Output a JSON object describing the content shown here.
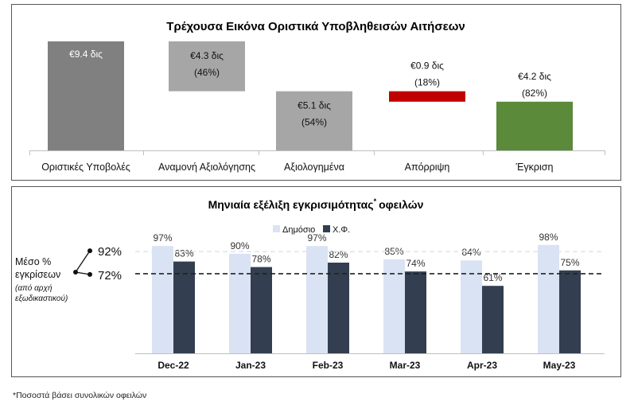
{
  "chart_data": [
    {
      "type": "waterfall",
      "title": "Τρέχουσα Εικόνα Οριστικά Υποβληθεισών Αιτήσεων",
      "categories": [
        "Οριστικές Υποβολές",
        "Αναμονή Αξιολόγησης",
        "Αξιολογημένα",
        "Απόρριψη",
        "Έγκριση"
      ],
      "values": [
        9.4,
        4.3,
        5.1,
        0.9,
        4.2
      ],
      "value_labels": [
        "€9.4 δις",
        "€4.3 δις",
        "€5.1 δις",
        "€0.9 δις",
        "€4.2 δις"
      ],
      "pct_labels": [
        "",
        "(46%)",
        "(54%)",
        "(18%)",
        "(82%)"
      ],
      "bases": [
        0,
        5.1,
        0,
        4.2,
        0
      ],
      "ylim": [
        0,
        9.4
      ],
      "colors": [
        "#808080",
        "#a6a6a6",
        "#a6a6a6",
        "#c00000",
        "#5a8a3a"
      ]
    },
    {
      "type": "bar",
      "title": "Μηνιαία εξέλιξη εγκρισιμότητας",
      "title_sup": "*",
      "title_suffix": "οφειλών",
      "categories": [
        "Dec-22",
        "Jan-23",
        "Feb-23",
        "Mar-23",
        "Apr-23",
        "May-23"
      ],
      "series": [
        {
          "name": "Δημόσιο",
          "values": [
            97,
            90,
            97,
            85,
            84,
            98
          ],
          "labels": [
            "97%",
            "90%",
            "97%",
            "85%",
            "84%",
            "98%"
          ],
          "color": "#dae3f3"
        },
        {
          "name": "Χ.Φ.",
          "values": [
            83,
            78,
            82,
            74,
            61,
            75
          ],
          "labels": [
            "83%",
            "78%",
            "82%",
            "74%",
            "61%",
            "75%"
          ],
          "color": "#333f50"
        }
      ],
      "reference_lines": [
        {
          "value": 92,
          "label": "92%",
          "color": "#dae3f3"
        },
        {
          "value": 72,
          "label": "72%",
          "color": "#222222"
        }
      ],
      "ylim": [
        0,
        100
      ],
      "side_label": [
        "Μέσο %",
        "εγκρίσεων"
      ],
      "side_note": [
        "(από αρχή",
        "εξωδικαστικού)"
      ]
    }
  ],
  "footnote": "*Ποσοστά βάσει συνολικών οφειλών"
}
